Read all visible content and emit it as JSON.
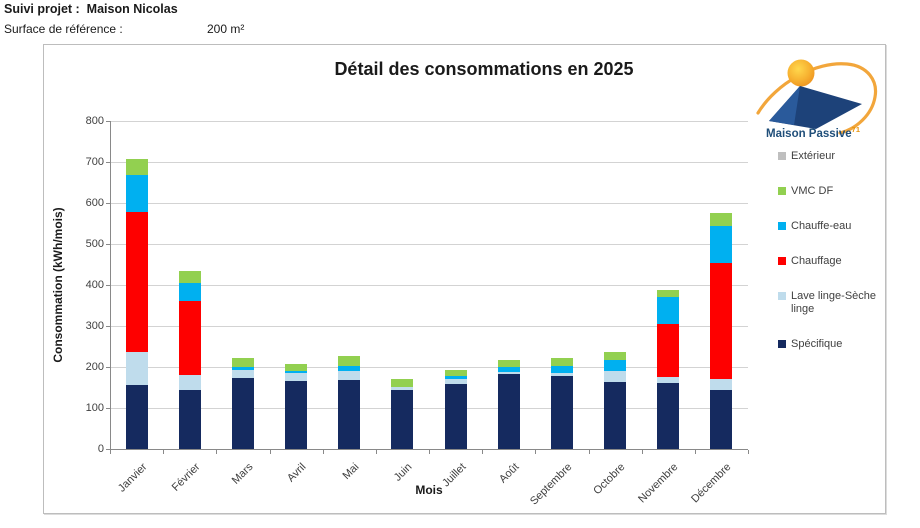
{
  "header": {
    "project_label": "Suivi projet :",
    "project_value": "Maison Nicolas",
    "surface_label": "Surface de référence :",
    "surface_value": "200  m²"
  },
  "logo": {
    "name": "Maison Passive",
    "department": "71"
  },
  "chart_data": {
    "type": "bar",
    "stacked": true,
    "title": "Détail des consommations en 2025",
    "xlabel": "Mois",
    "ylabel": "Consommation (kWh/mois)",
    "ylim": [
      0,
      800
    ],
    "ytick_step": 100,
    "grid": true,
    "legend_position": "right",
    "categories": [
      "Janvier",
      "Février",
      "Mars",
      "Avril",
      "Mai",
      "Juin",
      "Juillet",
      "Août",
      "Septembre",
      "Octobre",
      "Novembre",
      "Décembre"
    ],
    "series": [
      {
        "name": "Spécifique",
        "color": "#152A5F",
        "values": [
          155,
          145,
          172,
          165,
          168,
          145,
          158,
          183,
          178,
          163,
          160,
          144
        ]
      },
      {
        "name": "Lave linge-Sèche linge",
        "color": "#BFDCEC",
        "values": [
          82,
          35,
          20,
          20,
          22,
          6,
          12,
          6,
          8,
          28,
          15,
          27
        ]
      },
      {
        "name": "Chauffage",
        "color": "#FE0000",
        "values": [
          340,
          180,
          0,
          0,
          0,
          0,
          0,
          0,
          0,
          0,
          130,
          282
        ]
      },
      {
        "name": "Chauffe-eau",
        "color": "#00B0F0",
        "values": [
          92,
          45,
          8,
          5,
          12,
          0,
          8,
          10,
          16,
          25,
          65,
          90
        ]
      },
      {
        "name": "VMC DF",
        "color": "#92D050",
        "values": [
          38,
          30,
          22,
          18,
          25,
          19,
          15,
          18,
          20,
          20,
          19,
          33
        ]
      },
      {
        "name": "Extérieur",
        "color": "#BFBFBF",
        "values": [
          0,
          0,
          0,
          0,
          0,
          0,
          0,
          0,
          0,
          0,
          0,
          0
        ]
      }
    ],
    "legend_order_top_to_bottom": [
      "Extérieur",
      "VMC DF",
      "Chauffe-eau",
      "Chauffage",
      "Lave linge-Sèche linge",
      "Spécifique"
    ]
  }
}
